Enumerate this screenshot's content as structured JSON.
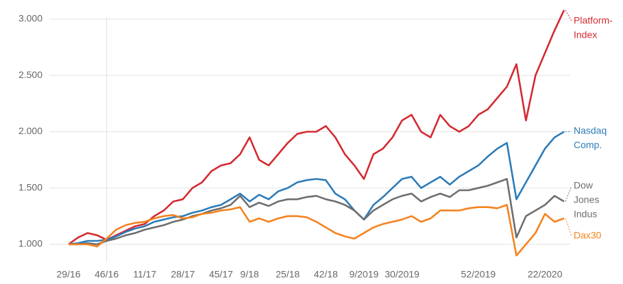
{
  "chart_data": {
    "type": "line",
    "categories": [
      "29/16",
      null,
      null,
      null,
      "46/16",
      null,
      null,
      null,
      "11/17",
      null,
      null,
      null,
      "28/17",
      null,
      null,
      null,
      "45/17",
      null,
      null,
      "9/18",
      null,
      null,
      null,
      "25/18",
      null,
      null,
      null,
      "42/18",
      null,
      null,
      null,
      "9/2019",
      null,
      null,
      null,
      "30/2019",
      null,
      null,
      null,
      null,
      null,
      null,
      null,
      "52/2019",
      null,
      null,
      null,
      null,
      null,
      null,
      "22/2020",
      null,
      null
    ],
    "ylim": [
      880,
      3100
    ],
    "yticks": [
      {
        "value": 1000,
        "label": "1.000"
      },
      {
        "value": 1500,
        "label": "1.500"
      },
      {
        "value": 2000,
        "label": "2.000"
      },
      {
        "value": 2500,
        "label": "2.500"
      },
      {
        "value": 3000,
        "label": "3.000"
      }
    ],
    "grid": true,
    "series": [
      {
        "name": [
          "Platform-",
          "Index"
        ],
        "color": "#d42a31",
        "values": [
          1000,
          1060,
          1100,
          1080,
          1040,
          1080,
          1120,
          1160,
          1180,
          1250,
          1300,
          1380,
          1400,
          1500,
          1550,
          1650,
          1700,
          1720,
          1800,
          1950,
          1750,
          1700,
          1800,
          1900,
          1980,
          2000,
          2000,
          2050,
          1950,
          1800,
          1700,
          1580,
          1800,
          1850,
          1950,
          2100,
          2150,
          2000,
          1950,
          2150,
          2050,
          2000,
          2050,
          2150,
          2200,
          2300,
          2400,
          2600,
          2100,
          2500,
          2700,
          2900,
          3080
        ]
      },
      {
        "name": [
          "Nasdaq",
          "Comp."
        ],
        "color": "#2c7bb8",
        "values": [
          1000,
          1010,
          1030,
          1030,
          1040,
          1070,
          1110,
          1140,
          1160,
          1200,
          1220,
          1240,
          1250,
          1280,
          1300,
          1330,
          1350,
          1400,
          1450,
          1380,
          1440,
          1400,
          1470,
          1500,
          1550,
          1570,
          1580,
          1570,
          1450,
          1400,
          1300,
          1220,
          1350,
          1420,
          1500,
          1580,
          1600,
          1500,
          1550,
          1600,
          1530,
          1600,
          1650,
          1700,
          1780,
          1850,
          1900,
          1400,
          1550,
          1700,
          1850,
          1950,
          2000
        ]
      },
      {
        "name": [
          "Dow",
          "Jones",
          "Indus"
        ],
        "color": "#6e6e6e",
        "values": [
          1000,
          1000,
          1010,
          1000,
          1030,
          1050,
          1080,
          1100,
          1130,
          1150,
          1170,
          1200,
          1220,
          1250,
          1270,
          1300,
          1320,
          1350,
          1430,
          1330,
          1370,
          1340,
          1380,
          1400,
          1400,
          1420,
          1430,
          1400,
          1380,
          1350,
          1300,
          1220,
          1300,
          1350,
          1400,
          1430,
          1450,
          1380,
          1420,
          1450,
          1420,
          1480,
          1480,
          1500,
          1520,
          1550,
          1580,
          1060,
          1250,
          1300,
          1350,
          1430,
          1380
        ]
      },
      {
        "name": [
          "Dax30"
        ],
        "color": "#f5821f",
        "values": [
          1000,
          1000,
          1000,
          980,
          1050,
          1130,
          1170,
          1190,
          1200,
          1230,
          1250,
          1260,
          1230,
          1240,
          1270,
          1280,
          1300,
          1310,
          1330,
          1200,
          1230,
          1200,
          1230,
          1250,
          1250,
          1240,
          1200,
          1150,
          1100,
          1070,
          1050,
          1100,
          1150,
          1180,
          1200,
          1220,
          1250,
          1200,
          1230,
          1300,
          1300,
          1300,
          1320,
          1330,
          1330,
          1320,
          1350,
          900,
          1000,
          1100,
          1270,
          1200,
          1230
        ]
      }
    ]
  }
}
